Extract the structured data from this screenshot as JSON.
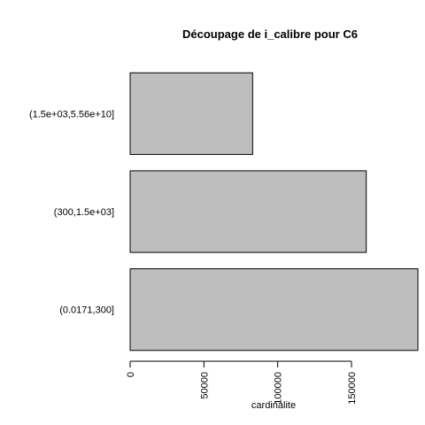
{
  "chart_data": {
    "type": "bar",
    "orientation": "horizontal",
    "title": "Découpage de i_calibre pour C6",
    "xlabel": "cardinalite",
    "ylabel": "",
    "categories": [
      "(0.0171,300]",
      "(300,1.5e+03]",
      "(1.5e+03,5.56e+10]"
    ],
    "values": [
      195000,
      160000,
      83000
    ],
    "xlim": [
      0,
      195000
    ],
    "x_ticks": [
      0,
      50000,
      100000,
      150000
    ],
    "x_tick_labels": [
      "0",
      "50000",
      "100000",
      "150000"
    ],
    "bar_color": "#bebebe",
    "bar_border_color": "#000000",
    "grid": false,
    "legend": "none"
  }
}
